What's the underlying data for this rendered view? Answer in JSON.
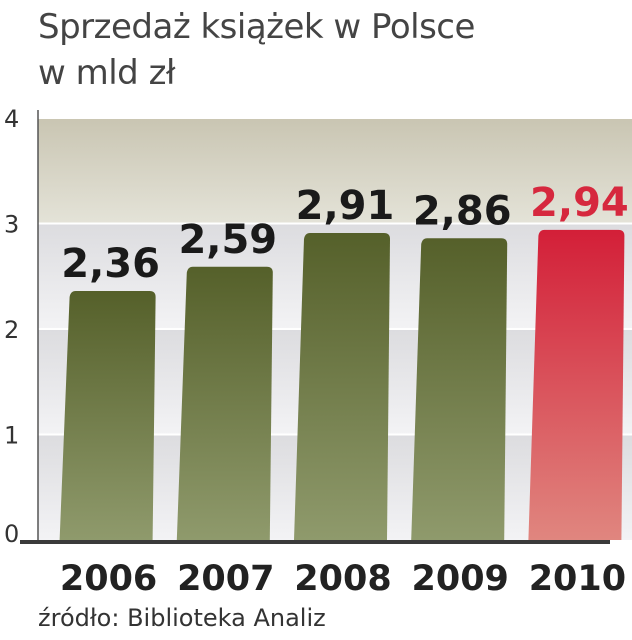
{
  "title": {
    "line1": "Sprzedaż książek w Polsce",
    "line2": "w mld zł"
  },
  "source": "źródło: Biblioteka Analiz",
  "colors": {
    "bar": "#5a6628",
    "bar_bottom": "#8a9666",
    "highlight": "#d6283e",
    "highlight_bottom": "#e07f7a",
    "label": "#1a1a1a",
    "highlight_label": "#d6283e",
    "band_dark": "#c9c5b2",
    "band_light": "#e9e9ec"
  },
  "chart_data": {
    "type": "bar",
    "categories": [
      "2006",
      "2007",
      "2008",
      "2009",
      "2010"
    ],
    "values": [
      2.36,
      2.59,
      2.91,
      2.86,
      2.94
    ],
    "value_labels": [
      "2,36",
      "2,59",
      "2,91",
      "2,86",
      "2,94"
    ],
    "highlight_index": 4,
    "ylim": [
      0,
      4
    ],
    "yticks": [
      "0",
      "1",
      "2",
      "3",
      "4"
    ],
    "grid": true
  }
}
